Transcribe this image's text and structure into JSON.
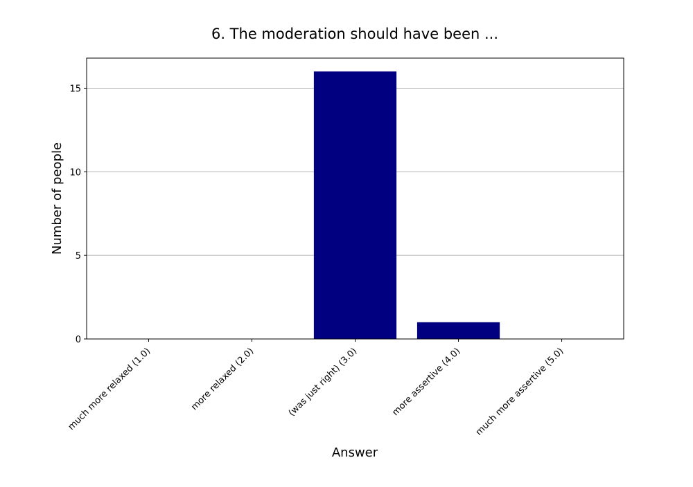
{
  "chart_data": {
    "type": "bar",
    "title": "6. The moderation should have been ...",
    "xlabel": "Answer",
    "ylabel": "Number of people",
    "categories": [
      "much more relaxed (1.0)",
      "more relaxed (2.0)",
      "(was just right) (3.0)",
      "more assertive (4.0)",
      "much more assertive (5.0)"
    ],
    "values": [
      0,
      0,
      16,
      1,
      0
    ],
    "ylim": [
      0,
      16.8
    ],
    "yticks": [
      0,
      5,
      10,
      15
    ],
    "grid": "horizontal",
    "legend": "none",
    "bar_color": "#000080",
    "grid_color": "#b0b0b0",
    "axis_color": "#000000"
  }
}
